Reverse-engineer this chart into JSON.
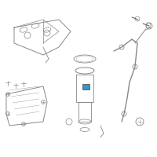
{
  "bg_color": "#ffffff",
  "line_color": "#888888",
  "dark_color": "#555555",
  "highlight_color": "#3399cc",
  "light_color": "#aaaaaa"
}
